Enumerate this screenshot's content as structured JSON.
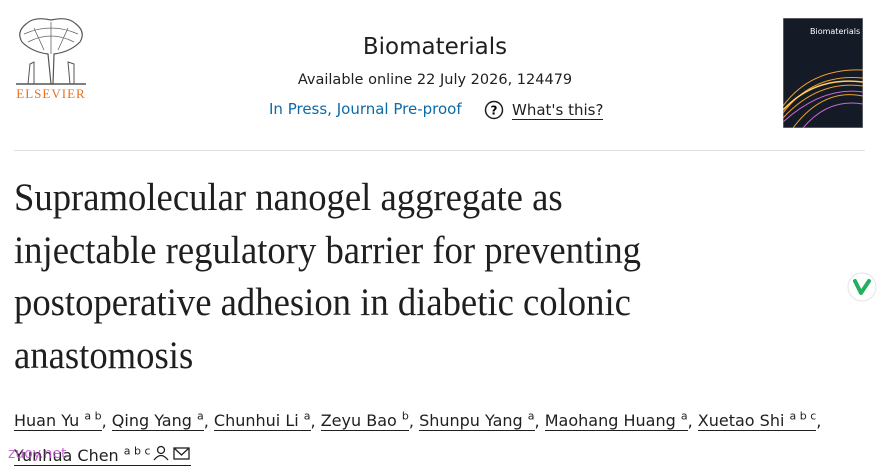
{
  "publisher": "ELSEVIER",
  "journal": {
    "name": "Biomaterials",
    "availability": "Available online 22 July 2026, 124479",
    "status_link": "In Press, Journal Pre-proof",
    "help_link": "What's this?",
    "cover_title": "Biomaterials"
  },
  "article": {
    "title_lines": [
      "Supramolecular nanogel aggregate as",
      "injectable regulatory barrier for preventing",
      "postoperative adhesion in diabetic colonic",
      "anastomosis"
    ],
    "author_separator": ",",
    "authors": [
      {
        "name": "Huan Yu",
        "affiliations": "a b"
      },
      {
        "name": "Qing Yang",
        "affiliations": "a"
      },
      {
        "name": "Chunhui Li",
        "affiliations": "a"
      },
      {
        "name": "Zeyu Bao",
        "affiliations": "b"
      },
      {
        "name": "Shunpu Yang",
        "affiliations": "a"
      },
      {
        "name": "Maohang Huang",
        "affiliations": "a"
      },
      {
        "name": "Xuetao Shi",
        "affiliations": "a b c"
      },
      {
        "name": "Yunhua Chen",
        "affiliations": "a b c"
      }
    ]
  },
  "watermark": "zuoy.net"
}
